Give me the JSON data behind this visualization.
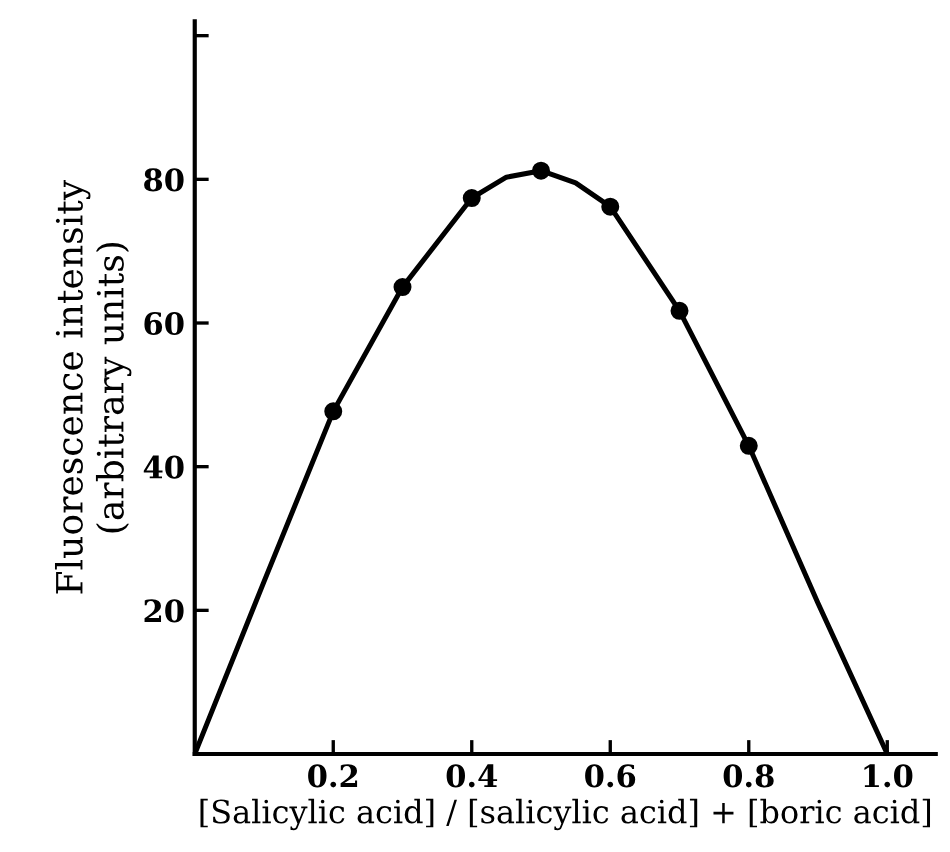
{
  "chart_data": {
    "type": "scatter",
    "xlabel": "[Salicylic acid] / [salicylic acid] + [boric acid]",
    "ylabel": "Fluorescence intensity\n(arbitrary units)",
    "xlim": [
      0,
      1.07
    ],
    "ylim": [
      0,
      102
    ],
    "xticks": [
      0.2,
      0.4,
      0.6,
      0.8,
      {
        "value": 1.0,
        "label": "1.0"
      }
    ],
    "yticks": [
      20,
      40,
      60,
      80,
      {
        "value": 100,
        "label": null
      }
    ],
    "grid": false,
    "legend": false,
    "marker": "circle",
    "series": [
      {
        "color": "#000000",
        "x": [
          0.2,
          0.3,
          0.4,
          0.5,
          0.6,
          0.7,
          0.8
        ],
        "values": [
          47.7,
          65.0,
          77.4,
          81.2,
          76.2,
          61.7,
          42.9
        ]
      },
      {
        "type": "line",
        "color": "#000000",
        "line_style": "solid",
        "marker": "none",
        "x": [
          0,
          0.1,
          0.2,
          0.3,
          0.4,
          0.45,
          0.5,
          0.55,
          0.6,
          0.7,
          0.8,
          0.9,
          1.0
        ],
        "values": [
          0,
          24,
          47.7,
          65,
          77.4,
          80.3,
          81.2,
          79.5,
          76.2,
          61.7,
          42.9,
          21,
          0
        ]
      }
    ]
  }
}
